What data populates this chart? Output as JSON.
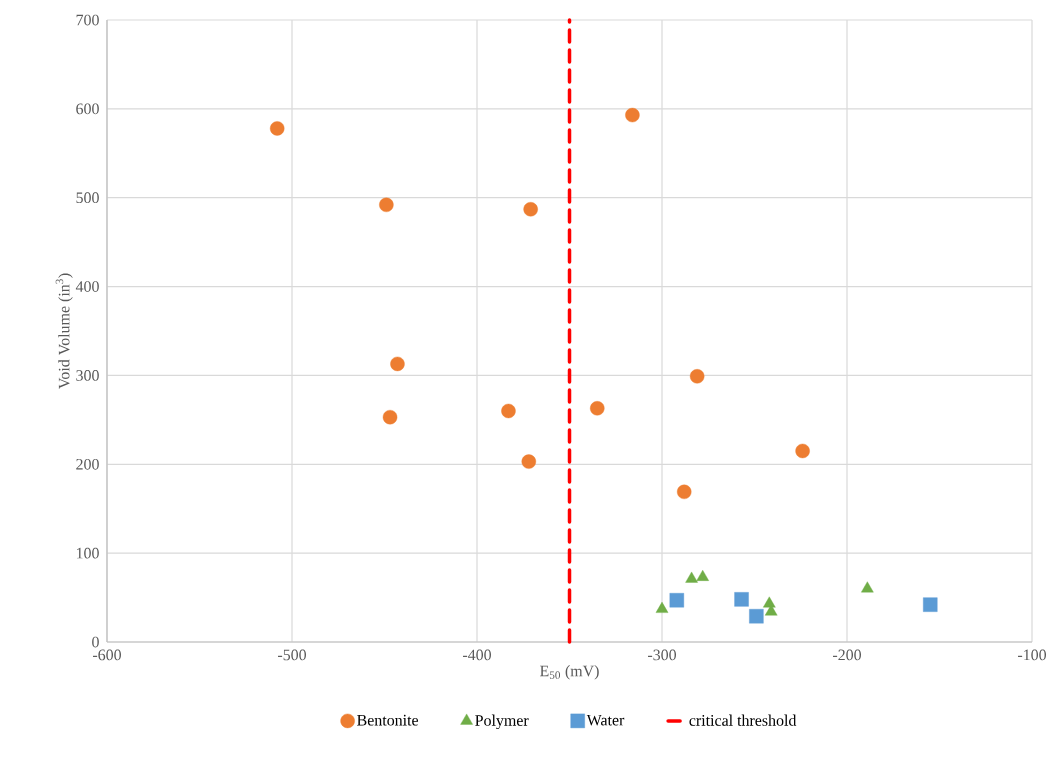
{
  "chart_data": {
    "type": "scatter",
    "xlabel": "E$_{50}$ (mV)",
    "ylabel": "Void Volume (in$^{3}$)",
    "xlim": [
      -600,
      -100
    ],
    "xticks": [
      -600,
      -500,
      -400,
      -300,
      -200,
      -100
    ],
    "ylim": [
      0,
      700
    ],
    "yticks": [
      0,
      100,
      200,
      300,
      400,
      500,
      600,
      700
    ],
    "grid": true,
    "legend": "bottom",
    "series": [
      {
        "name": "Bentonite",
        "color": "#ed7d31",
        "marker": "circle",
        "x": [
          -508,
          -449,
          -443,
          -447,
          -383,
          -371,
          -372,
          -335,
          -316,
          -281,
          -288,
          -224
        ],
        "values": [
          578,
          492,
          313,
          253,
          260,
          487,
          203,
          263,
          593,
          299,
          169,
          215
        ]
      },
      {
        "name": "Polymer",
        "color": "#70ad47",
        "marker": "triangle",
        "x": [
          -300,
          -284,
          -278,
          -242,
          -241,
          -189
        ],
        "values": [
          37,
          71,
          73,
          43,
          34,
          60
        ]
      },
      {
        "name": "Water",
        "color": "#5b9bd5",
        "marker": "square",
        "x": [
          -292,
          -257,
          -249,
          -155
        ],
        "values": [
          47,
          48,
          29,
          42
        ]
      }
    ],
    "ref_lines": [
      {
        "axis": "x",
        "value": -350,
        "label": "critical threshold",
        "color": "#ff0000",
        "line_style": "dashed"
      }
    ]
  }
}
